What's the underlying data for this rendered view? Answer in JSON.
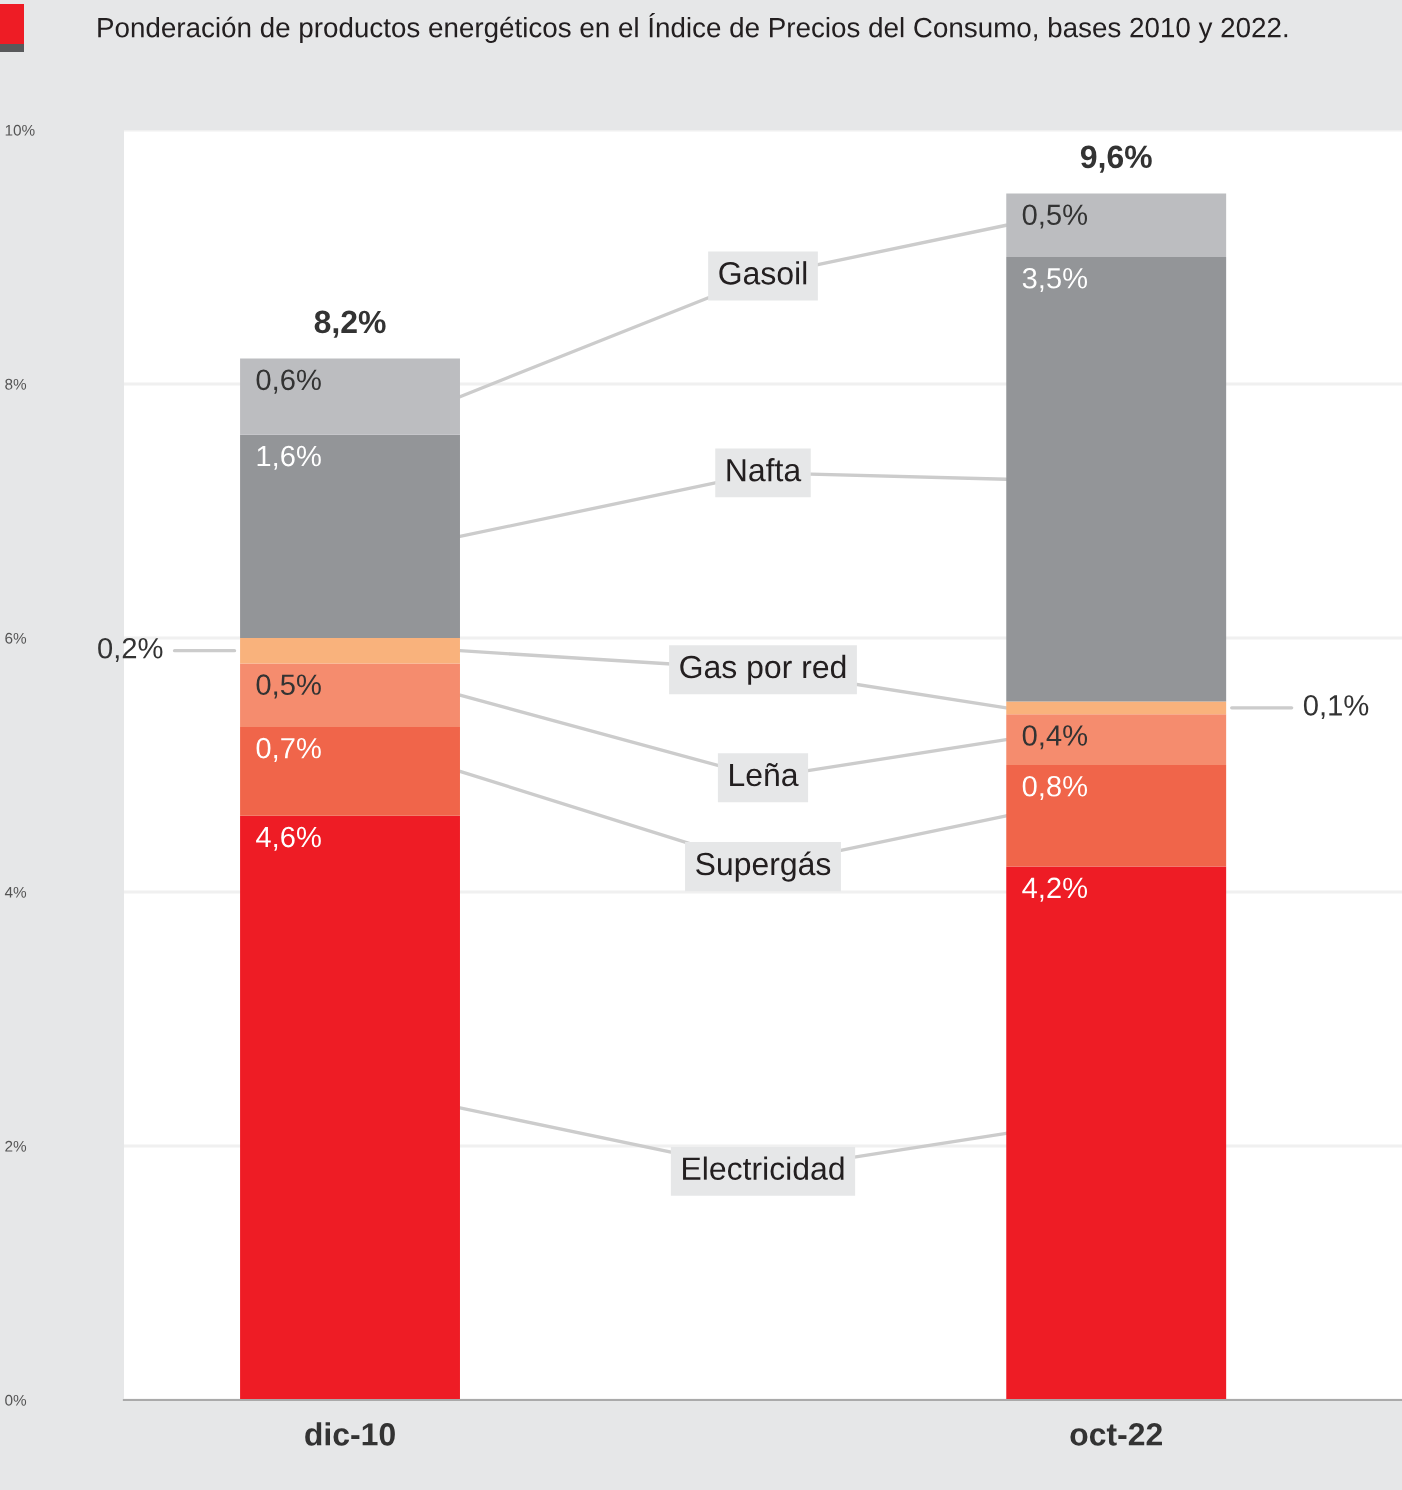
{
  "chart_data": {
    "type": "bar",
    "stacked": true,
    "title": "Ponderación de productos energéticos en el Índice de Precios del Consumo, bases 2010 y 2022.",
    "categories": [
      "dic-10",
      "oct-22"
    ],
    "series": [
      {
        "name": "Electricidad",
        "color": "#ee1c25",
        "values": [
          4.6,
          4.2
        ],
        "value_labels": [
          "4,6%",
          "4,2%"
        ]
      },
      {
        "name": "Supergás",
        "color": "#f0654a",
        "values": [
          0.7,
          0.8
        ],
        "value_labels": [
          "0,7%",
          "0,8%"
        ]
      },
      {
        "name": "Leña",
        "color": "#f58c6e",
        "values": [
          0.5,
          0.4
        ],
        "value_labels": [
          "0,5%",
          "0,4%"
        ]
      },
      {
        "name": "Gas por red",
        "color": "#f9b27c",
        "values": [
          0.2,
          0.1
        ],
        "value_labels": [
          "0,2%",
          "0,1%"
        ]
      },
      {
        "name": "Nafta",
        "color": "#939598",
        "values": [
          1.6,
          3.5
        ],
        "value_labels": [
          "1,6%",
          "3,5%"
        ]
      },
      {
        "name": "Gasoil",
        "color": "#bcbdc0",
        "values": [
          0.6,
          0.5
        ],
        "value_labels": [
          "0,6%",
          "0,5%"
        ]
      }
    ],
    "totals": [
      "8,2%",
      "9,6%"
    ],
    "ylim": [
      0,
      10
    ],
    "yticks": [
      {
        "value": 0,
        "label": "0%"
      },
      {
        "value": 2,
        "label": "2%"
      },
      {
        "value": 4,
        "label": "4%"
      },
      {
        "value": 6,
        "label": "6%"
      },
      {
        "value": 8,
        "label": "8%"
      },
      {
        "value": 10,
        "label": "10%"
      }
    ],
    "grid": "y",
    "legend": false
  }
}
